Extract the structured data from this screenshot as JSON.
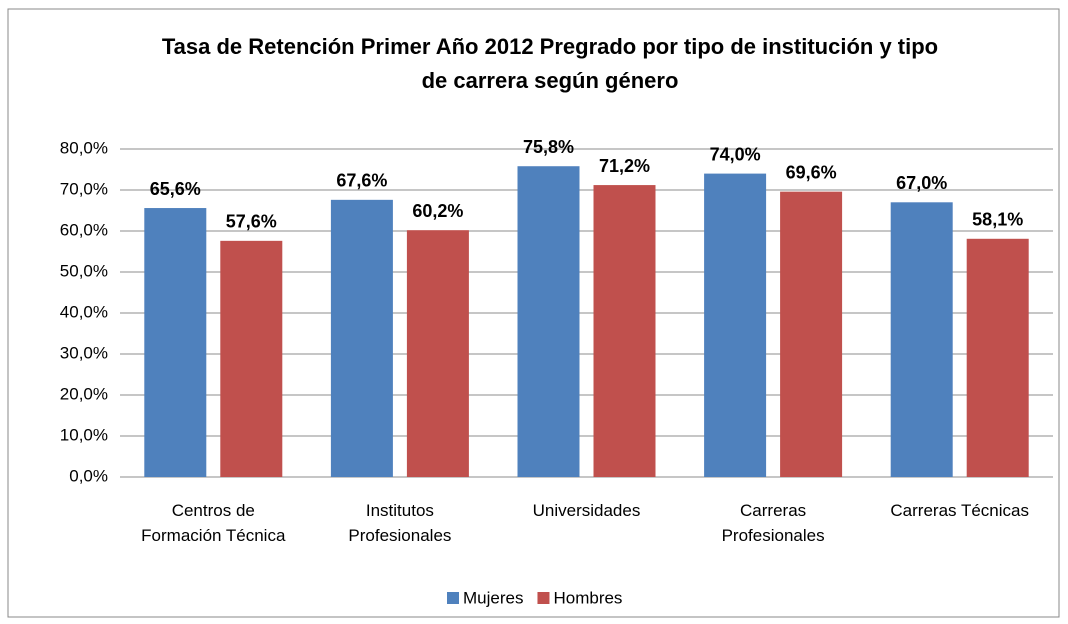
{
  "chart_data": {
    "type": "bar",
    "title": "Tasa de Retención Primer Año 2012 Pregrado por tipo de institución y tipo de carrera según género",
    "categories": [
      "Centros de Formación Técnica",
      "Institutos Profesionales",
      "Universidades",
      "Carreras Profesionales",
      "Carreras Técnicas"
    ],
    "series": [
      {
        "name": "Mujeres",
        "color": "#4f81bd",
        "values": [
          65.6,
          67.6,
          75.8,
          74.0,
          67.0
        ],
        "value_labels": [
          "65,6%",
          "67,6%",
          "75,8%",
          "74,0%",
          "67,0%"
        ]
      },
      {
        "name": "Hombres",
        "color": "#c0504d",
        "values": [
          57.6,
          60.2,
          71.2,
          69.6,
          58.1
        ],
        "value_labels": [
          "57,6%",
          "60,2%",
          "71,2%",
          "69,6%",
          "58,1%"
        ]
      }
    ],
    "ylim": [
      0,
      80
    ],
    "yticks": [
      {
        "value": 0,
        "label": "0,0%"
      },
      {
        "value": 10,
        "label": "10,0%"
      },
      {
        "value": 20,
        "label": "20,0%"
      },
      {
        "value": 30,
        "label": "30,0%"
      },
      {
        "value": 40,
        "label": "40,0%"
      },
      {
        "value": 50,
        "label": "50,0%"
      },
      {
        "value": 60,
        "label": "60,0%"
      },
      {
        "value": 70,
        "label": "70,0%"
      },
      {
        "value": 80,
        "label": "80,0%"
      }
    ],
    "grid": true,
    "legend": "bottom"
  }
}
